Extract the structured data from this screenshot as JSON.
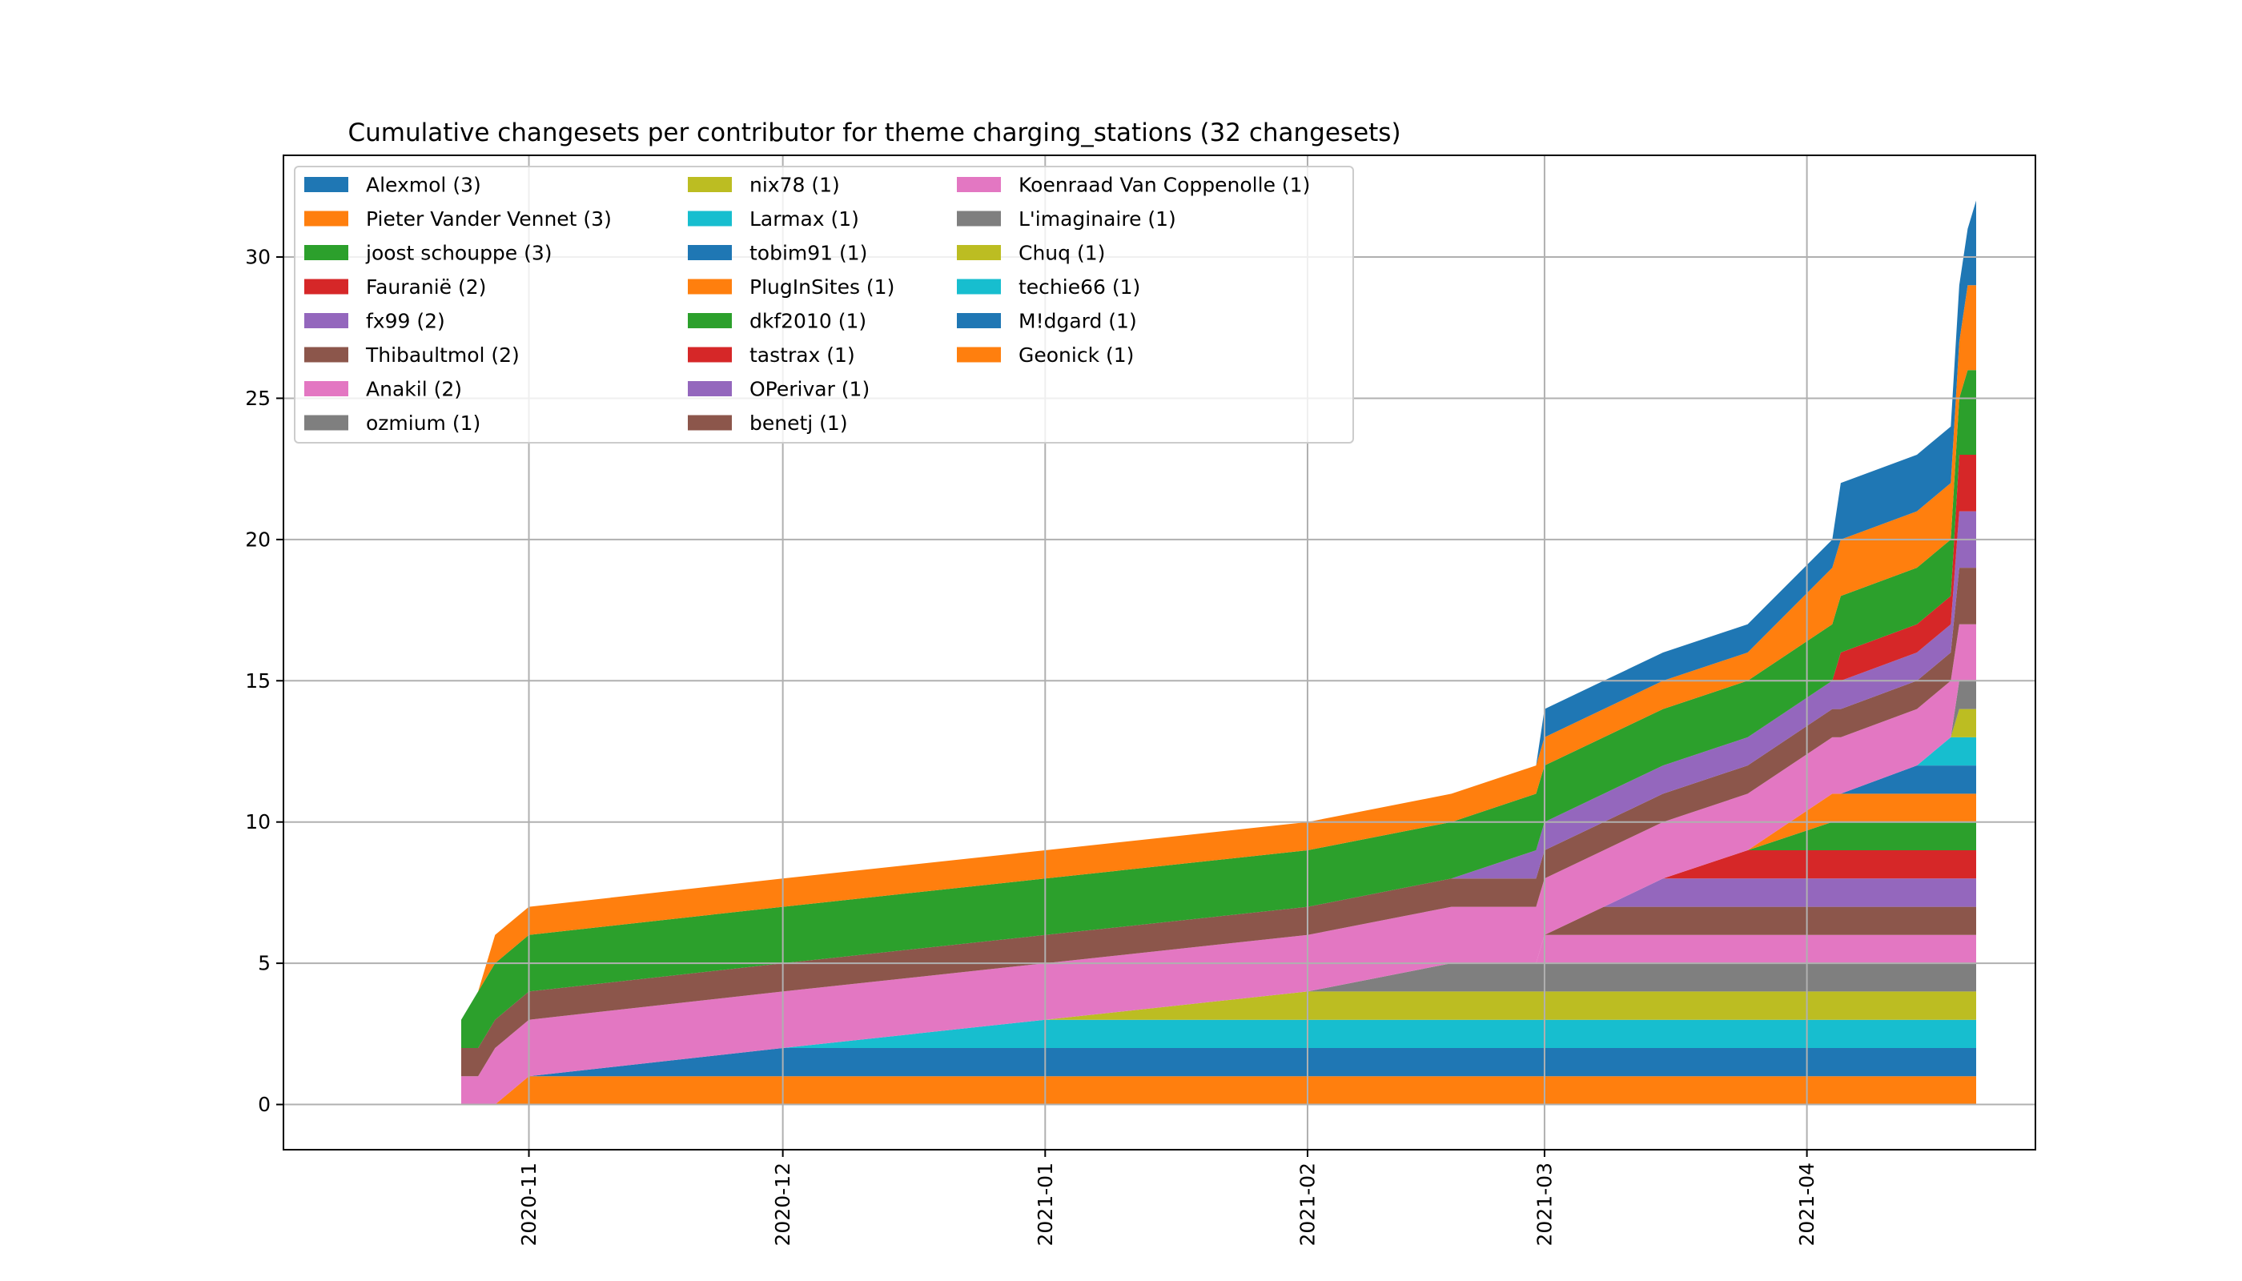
{
  "chart_data": {
    "type": "area",
    "stacked": true,
    "title": "Cumulative changesets per contributor for theme charging_stations (32 changesets)",
    "xlabel": "",
    "ylabel": "",
    "xlim": [
      "2020-10-03",
      "2021-04-28"
    ],
    "ylim": [
      -1.6,
      33.6
    ],
    "grid": true,
    "legend_position": "top-left",
    "legend_columns": 3,
    "x_ticks": [
      "2020-11-01",
      "2020-12-01",
      "2021-01-01",
      "2021-02-01",
      "2021-03-01",
      "2021-04-01"
    ],
    "x_tick_labels": [
      "2020-11",
      "2020-12",
      "2021-01",
      "2021-02",
      "2021-03",
      "2021-04"
    ],
    "y_ticks": [
      0,
      5,
      10,
      15,
      20,
      25,
      30
    ],
    "y_tick_labels": [
      "0",
      "5",
      "10",
      "15",
      "20",
      "25",
      "30"
    ],
    "series": [
      {
        "name": "Geonick (1)",
        "color": "#ff7f0e",
        "start": "2020-11-01"
      },
      {
        "name": "M!dgard (1)",
        "color": "#1f77b4",
        "start": "2020-12-01"
      },
      {
        "name": "techie66 (1)",
        "color": "#17becf",
        "start": "2021-01-01"
      },
      {
        "name": "Chuq (1)",
        "color": "#bcbd22",
        "start": "2021-02-01"
      },
      {
        "name": "L'imaginaire (1)",
        "color": "#7f7f7f",
        "start": "2021-02-18"
      },
      {
        "name": "Koenraad Van Coppenolle (1)",
        "color": "#e377c2",
        "start": "2021-03-01"
      },
      {
        "name": "benetj (1)",
        "color": "#8c564b",
        "start": "2021-03-08"
      },
      {
        "name": "OPerivar (1)",
        "color": "#9467bd",
        "start": "2021-03-15"
      },
      {
        "name": "tastrax (1)",
        "color": "#d62728",
        "start": "2021-03-25"
      },
      {
        "name": "dkf2010 (1)",
        "color": "#2ca02c",
        "start": "2021-04-04"
      },
      {
        "name": "PlugInSites (1)",
        "color": "#ff7f0e",
        "start": "2021-04-04"
      },
      {
        "name": "tobim91 (1)",
        "color": "#1f77b4",
        "start": "2021-04-14"
      },
      {
        "name": "Larmax (1)",
        "color": "#17becf",
        "start": "2021-04-18"
      },
      {
        "name": "nix78 (1)",
        "color": "#bcbd22",
        "start": "2021-04-19"
      },
      {
        "name": "ozmium (1)",
        "color": "#7f7f7f",
        "start": "2021-04-19"
      },
      {
        "name": "Anakil (2)",
        "color": "#e377c2",
        "starts": [
          "2020-10-24",
          "2020-10-28"
        ]
      },
      {
        "name": "Thibaultmol (2)",
        "color": "#8c564b",
        "starts": [
          "2020-10-24",
          "2021-04-19"
        ]
      },
      {
        "name": "fx99 (2)",
        "color": "#9467bd",
        "starts": [
          "2021-02-28",
          "2021-04-19"
        ]
      },
      {
        "name": "Fauranië (2)",
        "color": "#d62728",
        "starts": [
          "2021-04-05",
          "2021-04-19"
        ]
      },
      {
        "name": "joost schouppe (3)",
        "color": "#2ca02c",
        "starts": [
          "2020-10-24",
          "2020-10-26",
          "2021-04-20"
        ]
      },
      {
        "name": "Pieter Vander Vennet (3)",
        "color": "#ff7f0e",
        "starts": [
          "2020-10-28",
          "2021-04-04",
          "2021-04-20"
        ]
      },
      {
        "name": "Alexmol (3)",
        "color": "#1f77b4",
        "starts": [
          "2021-03-01",
          "2021-04-05",
          "2021-04-21"
        ]
      }
    ],
    "events": [
      [
        "2020-10-24",
        "Anakil (2)"
      ],
      [
        "2020-10-24",
        "Thibaultmol (2)"
      ],
      [
        "2020-10-24",
        "joost schouppe (3)"
      ],
      [
        "2020-10-26",
        "joost schouppe (3)"
      ],
      [
        "2020-10-28",
        "Anakil (2)"
      ],
      [
        "2020-10-28",
        "Pieter Vander Vennet (3)"
      ],
      [
        "2020-11-01",
        "Geonick (1)"
      ],
      [
        "2020-12-01",
        "M!dgard (1)"
      ],
      [
        "2021-01-01",
        "techie66 (1)"
      ],
      [
        "2021-02-01",
        "Chuq (1)"
      ],
      [
        "2021-02-18",
        "L'imaginaire (1)"
      ],
      [
        "2021-02-28",
        "fx99 (2)"
      ],
      [
        "2021-03-01",
        "Koenraad Van Coppenolle (1)"
      ],
      [
        "2021-03-01",
        "Alexmol (3)"
      ],
      [
        "2021-03-08",
        "benetj (1)"
      ],
      [
        "2021-03-15",
        "OPerivar (1)"
      ],
      [
        "2021-03-25",
        "tastrax (1)"
      ],
      [
        "2021-04-04",
        "dkf2010 (1)"
      ],
      [
        "2021-04-04",
        "PlugInSites (1)"
      ],
      [
        "2021-04-04",
        "Pieter Vander Vennet (3)"
      ],
      [
        "2021-04-05",
        "Fauranië (2)"
      ],
      [
        "2021-04-05",
        "Alexmol (3)"
      ],
      [
        "2021-04-14",
        "tobim91 (1)"
      ],
      [
        "2021-04-18",
        "Larmax (1)"
      ],
      [
        "2021-04-19",
        "nix78 (1)"
      ],
      [
        "2021-04-19",
        "ozmium (1)"
      ],
      [
        "2021-04-19",
        "Thibaultmol (2)"
      ],
      [
        "2021-04-19",
        "fx99 (2)"
      ],
      [
        "2021-04-19",
        "Fauranië (2)"
      ],
      [
        "2021-04-20",
        "joost schouppe (3)"
      ],
      [
        "2021-04-20",
        "Pieter Vander Vennet (3)"
      ],
      [
        "2021-04-21",
        "Alexmol (3)"
      ]
    ],
    "legend_order": [
      "Alexmol (3)",
      "Pieter Vander Vennet (3)",
      "joost schouppe (3)",
      "Fauranië (2)",
      "fx99 (2)",
      "Thibaultmol (2)",
      "Anakil (2)",
      "ozmium (1)",
      "nix78 (1)",
      "Larmax (1)",
      "tobim91 (1)",
      "PlugInSites (1)",
      "dkf2010 (1)",
      "tastrax (1)",
      "OPerivar (1)",
      "benetj (1)",
      "Koenraad Van Coppenolle (1)",
      "L'imaginaire (1)",
      "Chuq (1)",
      "techie66 (1)",
      "M!dgard (1)",
      "Geonick (1)"
    ]
  }
}
